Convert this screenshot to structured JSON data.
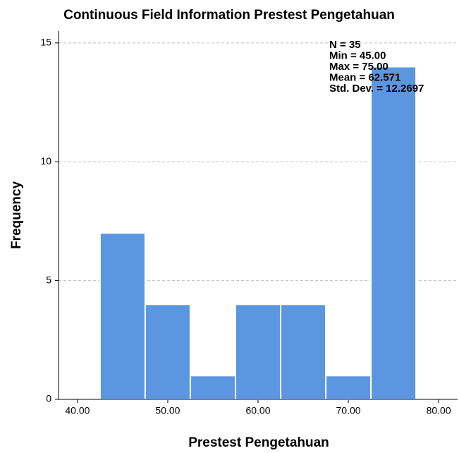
{
  "chart_data": {
    "type": "histogram",
    "title": "Continuous Field Information Prestest Pengetahuan",
    "xlabel": "Prestest Pengetahuan",
    "ylabel": "Frequency",
    "bins": [
      42.5,
      47.5,
      52.5,
      57.5,
      62.5,
      67.5,
      72.5,
      77.5
    ],
    "values": [
      7,
      4,
      1,
      4,
      4,
      1,
      14
    ],
    "color": "#5b97e1",
    "xlim": [
      37.9,
      82.1
    ],
    "xticks": [
      {
        "value": 40,
        "label": "40.00"
      },
      {
        "value": 50,
        "label": "50.00"
      },
      {
        "value": 60,
        "label": "60.00"
      },
      {
        "value": 70,
        "label": "70.00"
      },
      {
        "value": 80,
        "label": "80.00"
      }
    ],
    "ylim": [
      0,
      15.5
    ],
    "yticks": [
      0,
      5,
      10,
      15
    ],
    "grid": true,
    "annotations": [
      "N = 35",
      "Min = 45.00",
      "Max = 75.00",
      "Mean = 62.571",
      "Std. Dev. = 12.2697"
    ]
  }
}
